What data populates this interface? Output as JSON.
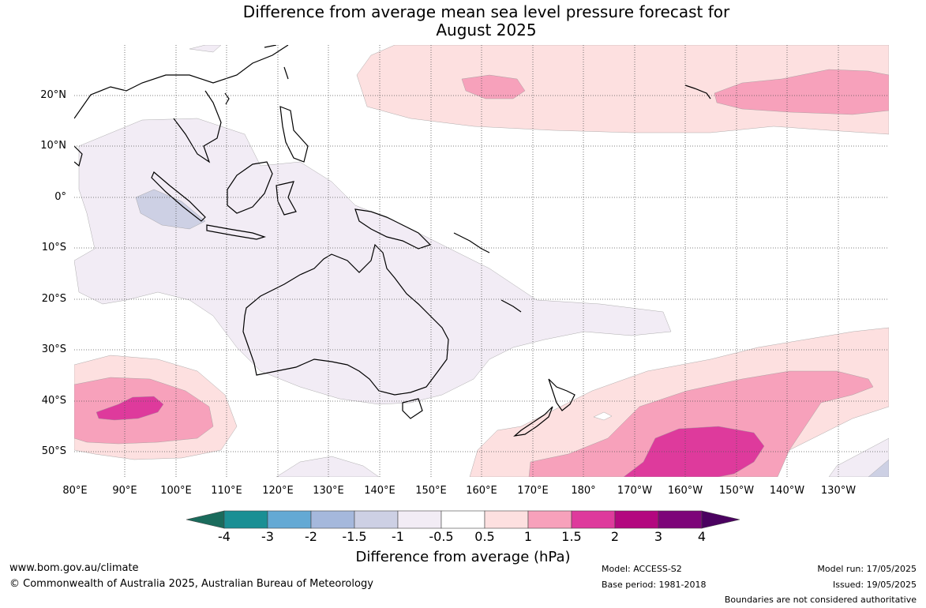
{
  "title": {
    "line1": "Difference from average mean sea level pressure forecast for",
    "line2": "August 2025"
  },
  "map": {
    "lat_labels": [
      "20°N",
      "10°N",
      "0°",
      "10°S",
      "20°S",
      "30°S",
      "40°S",
      "50°S"
    ],
    "lon_labels": [
      "80°E",
      "90°E",
      "100°E",
      "110°E",
      "120°E",
      "130°E",
      "140°E",
      "150°E",
      "160°E",
      "170°E",
      "180°",
      "170°W",
      "160°W",
      "150°W",
      "140°W",
      "130°W"
    ],
    "gridlines": "dotted"
  },
  "colorbar": {
    "ticks": [
      "-4",
      "-3",
      "-2",
      "-1.5",
      "-1",
      "-0.5",
      "0.5",
      "1",
      "1.5",
      "2",
      "3",
      "4"
    ],
    "colors": [
      "#1a6b5c",
      "#1a8f94",
      "#64a9d4",
      "#a5b8dc",
      "#cdd0e4",
      "#f2ecf5",
      "#ffffff",
      "#fde0e0",
      "#f7a1bb",
      "#de3a9c",
      "#b3077f",
      "#7d0579",
      "#4b0260"
    ],
    "label": "Difference from average (hPa)"
  },
  "footer": {
    "website": "www.bom.gov.au/climate",
    "copyright": "© Commonwealth of Australia 2025, Australian Bureau of Meteorology",
    "model": "Model: ACCESS-S2",
    "base_period": "Base period: 1981-2018",
    "model_run": "Model run: 17/05/2025",
    "issued": "Issued: 19/05/2025",
    "disclaimer": "Boundaries are not considered authoritative"
  }
}
